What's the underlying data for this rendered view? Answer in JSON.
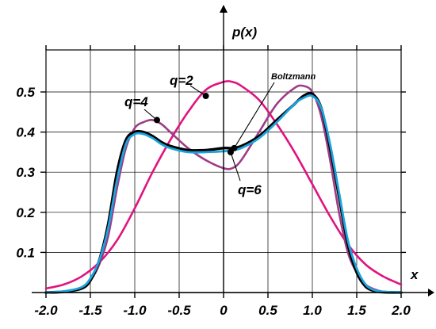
{
  "chart_data": {
    "type": "line",
    "title": "",
    "xlabel": "x",
    "ylabel": "p(x)",
    "xlim": [
      -2.0,
      2.0
    ],
    "ylim": [
      0.0,
      0.6
    ],
    "grid": true,
    "x_ticks": [
      "-2.0",
      "-1.5",
      "-1.0",
      "-0.5",
      "0",
      "0.5",
      "1.0",
      "1.5",
      "2.0"
    ],
    "y_ticks": [
      "0.1",
      "0.2",
      "0.3",
      "0.4",
      "0.5"
    ],
    "series": [
      {
        "name": "q=2",
        "color": "#e0137f",
        "x": [
          -2.0,
          -1.8,
          -1.6,
          -1.4,
          -1.2,
          -1.0,
          -0.8,
          -0.6,
          -0.4,
          -0.2,
          0.0,
          0.1,
          0.2,
          0.4,
          0.6,
          0.8,
          1.0,
          1.2,
          1.4,
          1.6,
          1.8,
          2.0
        ],
        "y": [
          0.01,
          0.02,
          0.04,
          0.075,
          0.13,
          0.21,
          0.3,
          0.38,
          0.45,
          0.505,
          0.525,
          0.525,
          0.515,
          0.48,
          0.42,
          0.35,
          0.27,
          0.19,
          0.12,
          0.07,
          0.04,
          0.02
        ]
      },
      {
        "name": "q=4",
        "color": "#9e3c86",
        "x": [
          -2.0,
          -1.8,
          -1.6,
          -1.5,
          -1.4,
          -1.3,
          -1.2,
          -1.1,
          -1.0,
          -0.9,
          -0.8,
          -0.7,
          -0.6,
          -0.4,
          -0.2,
          0.0,
          0.1,
          0.2,
          0.4,
          0.6,
          0.8,
          0.9,
          1.0,
          1.1,
          1.2,
          1.3,
          1.4,
          1.5,
          1.6,
          1.7,
          1.8,
          2.0
        ],
        "y": [
          0.0,
          0.002,
          0.01,
          0.03,
          0.07,
          0.14,
          0.26,
          0.36,
          0.41,
          0.425,
          0.43,
          0.42,
          0.4,
          0.36,
          0.33,
          0.31,
          0.31,
          0.33,
          0.4,
          0.47,
          0.51,
          0.515,
          0.5,
          0.44,
          0.33,
          0.2,
          0.1,
          0.05,
          0.02,
          0.008,
          0.002,
          0.0
        ]
      },
      {
        "name": "Boltzmann",
        "color": "#000000",
        "x": [
          -2.0,
          -1.8,
          -1.6,
          -1.5,
          -1.4,
          -1.3,
          -1.2,
          -1.1,
          -1.0,
          -0.9,
          -0.8,
          -0.7,
          -0.6,
          -0.4,
          -0.2,
          0.0,
          0.1,
          0.2,
          0.4,
          0.6,
          0.8,
          0.9,
          1.0,
          1.1,
          1.2,
          1.3,
          1.4,
          1.5,
          1.6,
          1.7,
          1.8,
          2.0
        ],
        "y": [
          0.0,
          0.002,
          0.01,
          0.03,
          0.08,
          0.17,
          0.3,
          0.38,
          0.4,
          0.4,
          0.39,
          0.375,
          0.365,
          0.355,
          0.355,
          0.36,
          0.36,
          0.365,
          0.39,
          0.43,
          0.47,
          0.49,
          0.495,
          0.46,
          0.36,
          0.24,
          0.12,
          0.05,
          0.015,
          0.004,
          0.001,
          0.0
        ]
      },
      {
        "name": "q=6",
        "color": "#1ca3dc",
        "x": [
          -2.0,
          -1.8,
          -1.6,
          -1.5,
          -1.4,
          -1.3,
          -1.2,
          -1.1,
          -1.0,
          -0.9,
          -0.8,
          -0.7,
          -0.6,
          -0.4,
          -0.2,
          0.0,
          0.1,
          0.2,
          0.4,
          0.6,
          0.8,
          0.9,
          1.0,
          1.1,
          1.2,
          1.3,
          1.4,
          1.5,
          1.6,
          1.7,
          1.8,
          2.0
        ],
        "y": [
          0.0,
          0.003,
          0.013,
          0.035,
          0.08,
          0.16,
          0.28,
          0.37,
          0.395,
          0.395,
          0.385,
          0.37,
          0.36,
          0.35,
          0.35,
          0.352,
          0.355,
          0.36,
          0.385,
          0.425,
          0.47,
          0.485,
          0.49,
          0.46,
          0.37,
          0.25,
          0.13,
          0.06,
          0.02,
          0.006,
          0.002,
          0.0
        ]
      }
    ],
    "annotations": [
      {
        "text": "q=2",
        "series": "q=2"
      },
      {
        "text": "q=4",
        "series": "q=4"
      },
      {
        "text": "Boltzmann",
        "series": "Boltzmann"
      },
      {
        "text": "q=6",
        "series": "q=6"
      }
    ]
  }
}
